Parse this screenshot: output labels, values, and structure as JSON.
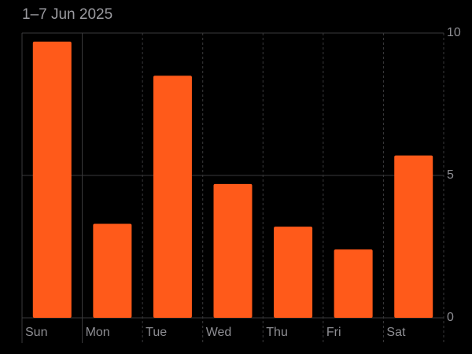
{
  "chart_data": {
    "type": "bar",
    "title": "1–7 Jun 2025",
    "categories": [
      "Sun",
      "Mon",
      "Tue",
      "Wed",
      "Thu",
      "Fri",
      "Sat"
    ],
    "values": [
      9.7,
      3.3,
      8.5,
      4.7,
      3.2,
      2.4,
      5.7
    ],
    "color": "#ff5a1a",
    "ylim": [
      0,
      10
    ],
    "yticks": [
      0,
      5,
      10
    ],
    "grid": true
  }
}
